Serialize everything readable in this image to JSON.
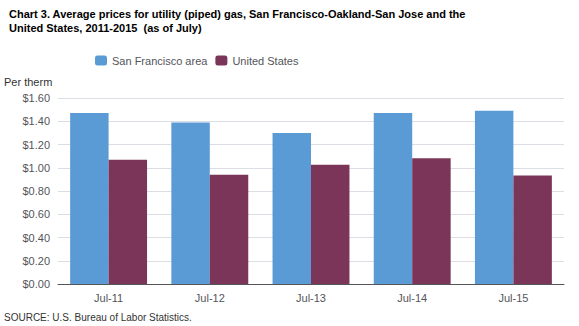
{
  "chart_data": {
    "type": "bar",
    "title": "Chart 3. Average prices for utility (piped) gas, San Francisco-Oakland-San Jose and the",
    "subtitle": "United States, 2011-2015  (as of July)",
    "ylabel": "Per therm",
    "annotations": [
      "SOURCE: U.S. Bureau of Labor Statistics."
    ],
    "categories": [
      "Jul-11",
      "Jul-12",
      "Jul-13",
      "Jul-14",
      "Jul-15"
    ],
    "series": [
      {
        "name": "San Francisco area",
        "color": "#5B9BD5",
        "values": [
          1.47,
          1.39,
          1.3,
          1.472,
          1.49
        ]
      },
      {
        "name": "United States",
        "color": "#7B3558",
        "values": [
          1.068,
          0.94,
          1.026,
          1.082,
          0.933
        ]
      }
    ],
    "ylim": [
      0.0,
      1.6
    ],
    "yticks": [
      {
        "value": 0.0,
        "label": "$0.00"
      },
      {
        "value": 0.2,
        "label": "$0.20"
      },
      {
        "value": 0.4,
        "label": "$0.40"
      },
      {
        "value": 0.6,
        "label": "$0.60"
      },
      {
        "value": 0.8,
        "label": "$0.80"
      },
      {
        "value": 1.0,
        "label": "$1.00"
      },
      {
        "value": 1.2,
        "label": "$1.20"
      },
      {
        "value": 1.4,
        "label": "$1.40"
      },
      {
        "value": 1.6,
        "label": "$1.60"
      }
    ],
    "grid": true,
    "legend": "upper left"
  }
}
